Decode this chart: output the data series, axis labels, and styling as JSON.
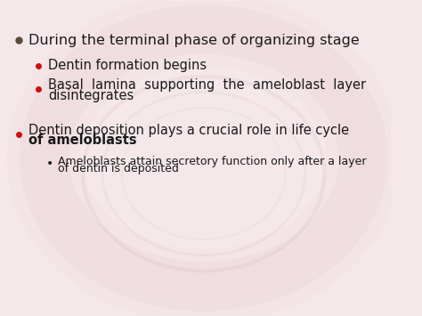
{
  "bg_color": "#f5e8ea",
  "text_color": "#1a1a1a",
  "bullet1_text": "During the terminal phase of organizing stage",
  "bullet1_color": "#2d2d2d",
  "bullet1_marker_color": "#5a4a3a",
  "sub_bullet_color": "#cc1111",
  "sub_bullet2_color": "#cc1111",
  "sub1_text": "Dentin formation begins",
  "sub2_line1": "Basal  lamina  supporting  the  ameloblast  layer",
  "sub2_line2": "disintegrates",
  "bullet2_line1": "Dentin deposition plays a crucial role in life cycle",
  "bullet2_line2": "of ameloblasts",
  "sub3_line1": "Ameloblasts attain secretory function only after a layer",
  "sub3_line2": "of dentin is deposited",
  "font_size_main": 11.5,
  "font_size_sub": 10.5,
  "font_size_sub2": 9.0
}
